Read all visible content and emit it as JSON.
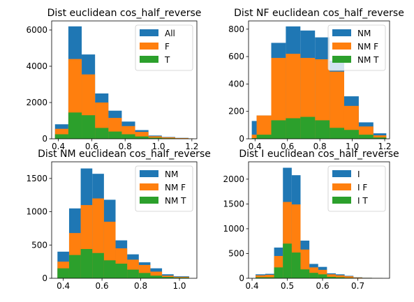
{
  "chart_data": [
    {
      "type": "bar",
      "title": "Dist euclidean cos_half_reverse",
      "xlabel": "",
      "ylabel": "",
      "xlim": [
        0.36,
        1.23
      ],
      "ylim": [
        0,
        6500
      ],
      "xticks": [
        0.4,
        0.6,
        0.8,
        1.0,
        1.2
      ],
      "xtick_labels": [
        "0.4",
        "0.6",
        "0.8",
        "1.0",
        "1.2"
      ],
      "yticks": [
        0,
        2000,
        4000,
        6000
      ],
      "ytick_labels": [
        "0",
        "2000",
        "4000",
        "6000"
      ],
      "bin_edges": [
        0.38,
        0.46,
        0.54,
        0.62,
        0.7,
        0.78,
        0.86,
        0.94,
        1.02,
        1.1,
        1.18,
        1.21
      ],
      "series": [
        {
          "name": "All",
          "values": [
            800,
            6200,
            4650,
            2500,
            1550,
            950,
            480,
            180,
            100,
            50,
            20
          ]
        },
        {
          "name": "F",
          "values": [
            550,
            4400,
            3550,
            2000,
            1150,
            700,
            380,
            140,
            80,
            40,
            15
          ]
        },
        {
          "name": "T",
          "values": [
            250,
            1450,
            1300,
            600,
            400,
            250,
            130,
            60,
            30,
            10,
            5
          ]
        }
      ],
      "legend_position": "top-right"
    },
    {
      "type": "bar",
      "title": "Dist NF euclidean cos_half_reverse",
      "xlabel": "",
      "ylabel": "",
      "xlim": [
        0.36,
        1.23
      ],
      "ylim": [
        0,
        860
      ],
      "xticks": [
        0.4,
        0.6,
        0.8,
        1.0,
        1.2
      ],
      "xtick_labels": [
        "0.4",
        "0.6",
        "0.8",
        "1.0",
        "1.2"
      ],
      "yticks": [
        0,
        200,
        400,
        600,
        800
      ],
      "ytick_labels": [
        "0",
        "200",
        "400",
        "600",
        "800"
      ],
      "bin_edges": [
        0.38,
        0.41,
        0.5,
        0.59,
        0.68,
        0.77,
        0.86,
        0.95,
        1.04,
        1.13,
        1.21
      ],
      "series": [
        {
          "name": "NM",
          "values": [
            130,
            170,
            700,
            820,
            790,
            740,
            570,
            310,
            120,
            40
          ]
        },
        {
          "name": "NM F",
          "values": [
            30,
            170,
            590,
            620,
            590,
            580,
            490,
            240,
            90,
            25
          ]
        },
        {
          "name": "NM T",
          "values": [
            5,
            30,
            135,
            150,
            160,
            135,
            80,
            65,
            30,
            10
          ]
        }
      ],
      "legend_position": "top-right"
    },
    {
      "type": "bar",
      "title": "Dist NM euclidean cos_half_reverse",
      "xlabel": "",
      "ylabel": "",
      "xlim": [
        0.34,
        1.09
      ],
      "ylim": [
        0,
        1750
      ],
      "xticks": [
        0.4,
        0.6,
        0.8,
        1.0
      ],
      "xtick_labels": [
        "0.4",
        "0.6",
        "0.8",
        "1.0"
      ],
      "yticks": [
        0,
        500,
        1000,
        1500
      ],
      "ytick_labels": [
        "0",
        "500",
        "1000",
        "1500"
      ],
      "bin_edges": [
        0.37,
        0.43,
        0.49,
        0.55,
        0.61,
        0.67,
        0.73,
        0.79,
        0.85,
        0.91,
        0.97,
        1.05
      ],
      "series": [
        {
          "name": "NM",
          "values": [
            400,
            1050,
            1650,
            1570,
            1180,
            570,
            360,
            240,
            150,
            60,
            30
          ]
        },
        {
          "name": "NM F",
          "values": [
            250,
            680,
            1100,
            1200,
            850,
            450,
            280,
            200,
            100,
            40,
            20
          ]
        },
        {
          "name": "NM T",
          "values": [
            150,
            350,
            440,
            380,
            270,
            220,
            130,
            80,
            40,
            20,
            10
          ]
        }
      ],
      "legend_position": "top-right"
    },
    {
      "type": "bar",
      "title": "Dist I euclidean cos_half_reverse",
      "xlabel": "",
      "ylabel": "",
      "xlim": [
        0.39,
        0.79
      ],
      "ylim": [
        0,
        2350
      ],
      "xticks": [
        0.4,
        0.5,
        0.6,
        0.7
      ],
      "xtick_labels": [
        "0.4",
        "0.5",
        "0.6",
        "0.7"
      ],
      "yticks": [
        0,
        500,
        1000,
        1500,
        2000
      ],
      "ytick_labels": [
        "0",
        "500",
        "1000",
        "1500",
        "2000"
      ],
      "bin_edges": [
        0.41,
        0.4375,
        0.4625,
        0.4875,
        0.5125,
        0.5375,
        0.5625,
        0.5875,
        0.6125,
        0.6375,
        0.6625,
        0.6875,
        0.7125,
        0.74,
        0.77
      ],
      "series": [
        {
          "name": "I",
          "values": [
            80,
            90,
            620,
            2230,
            2080,
            760,
            290,
            230,
            100,
            80,
            50,
            20,
            10,
            5
          ]
        },
        {
          "name": "I F",
          "values": [
            60,
            70,
            450,
            1540,
            1490,
            580,
            220,
            170,
            80,
            60,
            40,
            15,
            8,
            3
          ]
        },
        {
          "name": "I T",
          "values": [
            20,
            20,
            220,
            700,
            520,
            180,
            110,
            80,
            30,
            20,
            10,
            5,
            2,
            1
          ]
        }
      ],
      "legend_position": "top-right"
    }
  ],
  "colors": {
    "series1": "#1f77b4",
    "series2": "#ff7f0e",
    "series3": "#2ca02c"
  }
}
